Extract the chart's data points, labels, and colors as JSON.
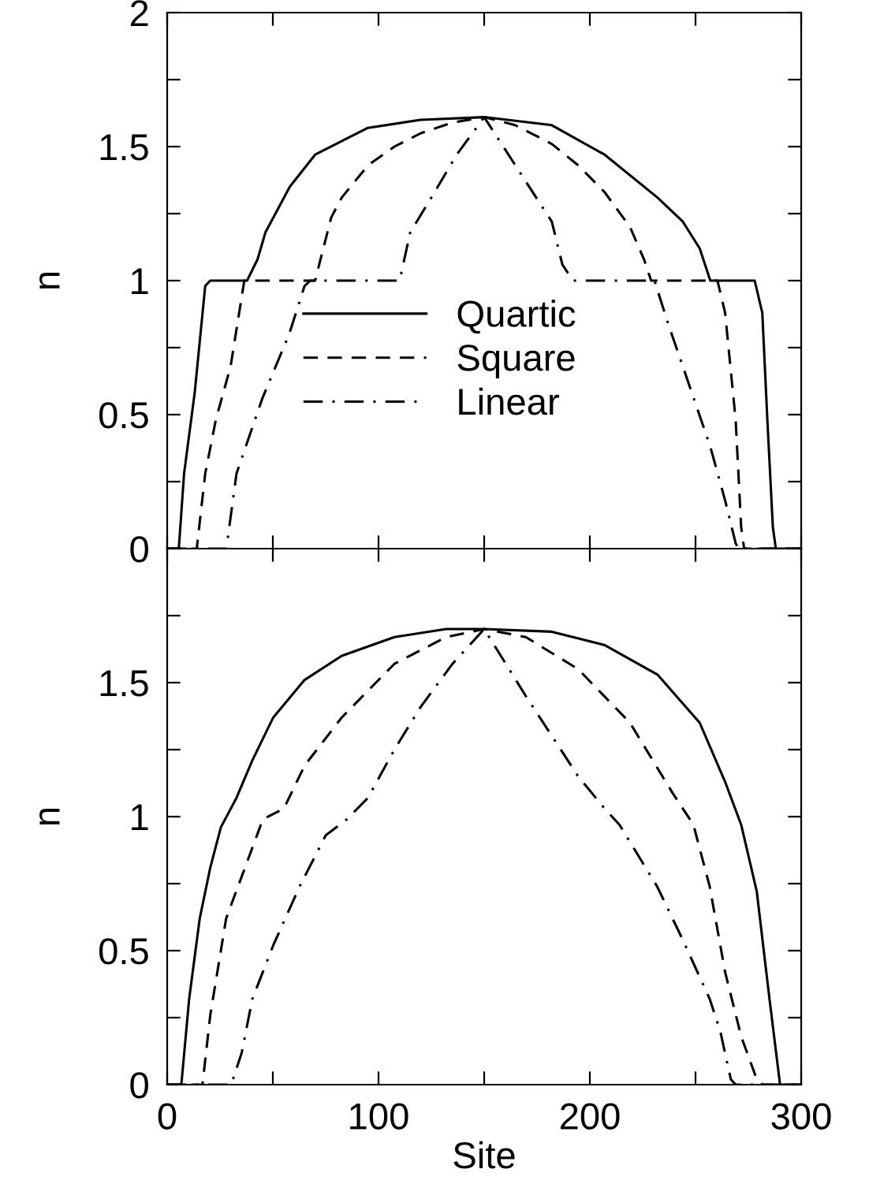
{
  "chart_data": [
    {
      "type": "line",
      "ylabel": "n",
      "xlim": [
        0,
        300
      ],
      "xticks": [
        0,
        {
          "value": 50,
          "label": null
        },
        100,
        {
          "value": 150,
          "label": null
        },
        200,
        {
          "value": 250,
          "label": null
        },
        300
      ],
      "ylim": [
        0,
        2
      ],
      "yticks": [
        0,
        {
          "value": 0.25,
          "label": null
        },
        0.5,
        {
          "value": 0.75,
          "label": null
        },
        1,
        {
          "value": 1.25,
          "label": null
        },
        1.5,
        {
          "value": 1.75,
          "label": null
        },
        2
      ],
      "tick_labels": "y",
      "legend": "center",
      "grid": false,
      "series": [
        {
          "name": "Quartic",
          "color": "#000000",
          "line_style": "solid",
          "x": [
            0,
            5.5,
            8,
            13,
            18,
            20.4,
            37.8,
            42.8,
            46.5,
            58,
            70,
            95,
            120,
            150,
            182,
            207,
            232,
            244,
            252,
            257,
            278,
            281.6,
            284,
            286.6,
            288,
            300
          ],
          "values": [
            0,
            0,
            0.28,
            0.58,
            0.98,
            1.0,
            1.0,
            1.08,
            1.18,
            1.35,
            1.47,
            1.57,
            1.6,
            1.61,
            1.58,
            1.47,
            1.31,
            1.22,
            1.12,
            1.0,
            1.0,
            0.88,
            0.48,
            0.08,
            0,
            0
          ]
        },
        {
          "name": "Square",
          "color": "#000000",
          "line_style": "dashed",
          "x": [
            0,
            14,
            18,
            23,
            30,
            36.5,
            70,
            77.6,
            82.6,
            95,
            107.5,
            120,
            135,
            150,
            164.7,
            182,
            194.5,
            207,
            219,
            225.6,
            229,
            260.4,
            264,
            269,
            271.6,
            273,
            300
          ],
          "values": [
            0,
            0,
            0.28,
            0.48,
            0.68,
            1.0,
            1.0,
            1.235,
            1.31,
            1.43,
            1.5,
            1.55,
            1.59,
            1.61,
            1.58,
            1.51,
            1.43,
            1.33,
            1.2,
            1.08,
            1.0,
            1.0,
            0.88,
            0.48,
            0.08,
            0,
            0
          ]
        },
        {
          "name": "Linear",
          "color": "#000000",
          "line_style": "dashdot",
          "x": [
            0,
            28,
            32.8,
            45,
            57.7,
            65,
            67.7,
            110,
            115,
            125,
            137,
            150,
            169.7,
            182,
            187,
            192,
            230.6,
            237,
            244,
            257,
            264,
            269,
            270.4,
            300
          ],
          "values": [
            0,
            0,
            0.28,
            0.56,
            0.8,
            0.98,
            1.0,
            1.0,
            1.18,
            1.31,
            1.47,
            1.61,
            1.37,
            1.22,
            1.06,
            1.0,
            1.0,
            0.84,
            0.68,
            0.38,
            0.18,
            0.02,
            0,
            0
          ]
        }
      ]
    },
    {
      "type": "line",
      "ylabel": "n",
      "xlabel": "Site",
      "xlim": [
        0,
        300
      ],
      "xticks": [
        0,
        {
          "value": 50,
          "label": null
        },
        100,
        {
          "value": 150,
          "label": null
        },
        200,
        {
          "value": 250,
          "label": null
        },
        300
      ],
      "ylim": [
        0,
        2
      ],
      "yticks": [
        0,
        {
          "value": 0.25,
          "label": null
        },
        0.5,
        {
          "value": 0.75,
          "label": null
        },
        1,
        {
          "value": 1.25,
          "label": null
        },
        1.5,
        {
          "value": 1.75,
          "label": null
        },
        {
          "value": 2,
          "label": null
        }
      ],
      "legend": false,
      "grid": false,
      "series": [
        {
          "color": "#000000",
          "line_style": "solid",
          "x": [
            0,
            6.7,
            10.4,
            15.4,
            20.4,
            25.4,
            32.8,
            40.3,
            50.2,
            65,
            82.6,
            107.5,
            132,
            150,
            182,
            207,
            232,
            252,
            264,
            271.6,
            279,
            285,
            290,
            300
          ],
          "values": [
            0,
            0,
            0.32,
            0.62,
            0.81,
            0.96,
            1.07,
            1.21,
            1.37,
            1.51,
            1.6,
            1.67,
            1.7,
            1.7,
            1.69,
            1.64,
            1.53,
            1.35,
            1.13,
            0.97,
            0.72,
            0.32,
            0,
            0
          ]
        },
        {
          "color": "#000000",
          "line_style": "dashed",
          "x": [
            0,
            16.7,
            20.4,
            27.9,
            45.3,
            55.2,
            65,
            82.6,
            107.5,
            132,
            150,
            169.7,
            194.5,
            219,
            239,
            249,
            256.7,
            264,
            271.6,
            279,
            281.6,
            300
          ],
          "values": [
            0,
            0,
            0.26,
            0.62,
            0.99,
            1.03,
            1.19,
            1.37,
            1.57,
            1.67,
            1.7,
            1.67,
            1.55,
            1.35,
            1.09,
            0.97,
            0.74,
            0.42,
            0.18,
            0.02,
            0,
            0
          ]
        },
        {
          "color": "#000000",
          "line_style": "dashdot",
          "x": [
            0,
            30.3,
            35.3,
            40.3,
            50.2,
            62.7,
            75,
            85,
            95,
            107.5,
            120,
            135,
            150,
            169.7,
            194.5,
            207,
            214,
            231.8,
            244,
            256.7,
            261.7,
            266.7,
            269,
            300
          ],
          "values": [
            0,
            0,
            0.12,
            0.32,
            0.52,
            0.74,
            0.93,
            0.99,
            1.07,
            1.25,
            1.41,
            1.57,
            1.7,
            1.45,
            1.15,
            1.03,
            0.97,
            0.74,
            0.54,
            0.32,
            0.2,
            0.02,
            0,
            0
          ]
        }
      ]
    }
  ]
}
